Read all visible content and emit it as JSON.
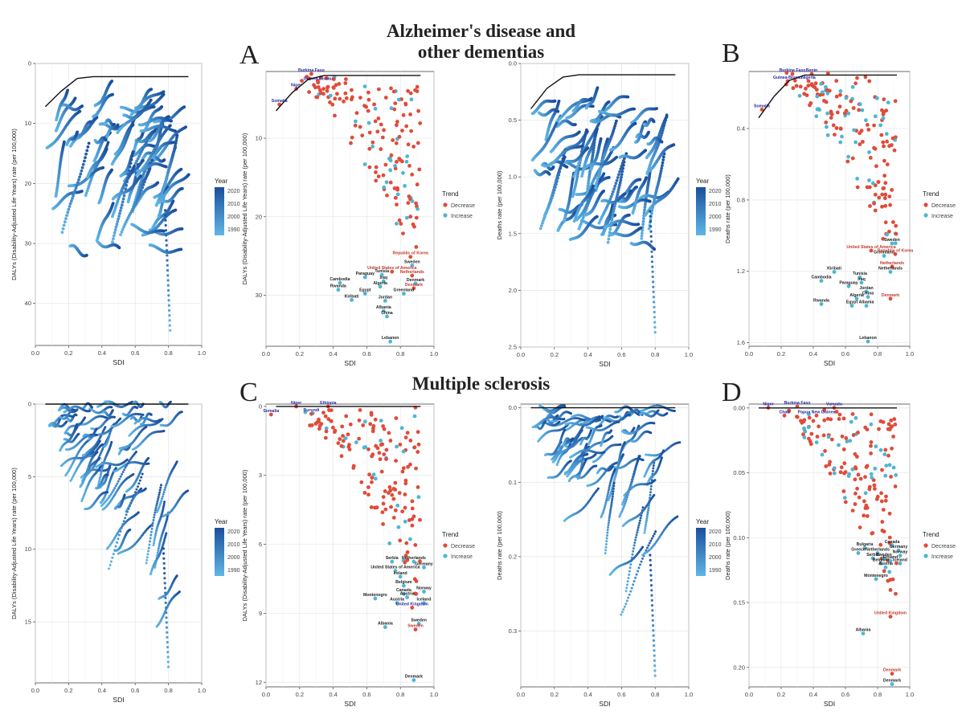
{
  "titles": {
    "top_line1": "Alzheimer's disease and",
    "top_line2": "other dementias",
    "bottom": "Multiple sclerosis"
  },
  "panel_letters": [
    "A",
    "B",
    "C",
    "D"
  ],
  "colors": {
    "decrease": "#e04b3a",
    "increase": "#4eb6d3",
    "year_dark": "#1b4f9c",
    "year_light": "#5fb6e6",
    "frontier": "#111111",
    "label_blue": "#2a2aa0",
    "label_red": "#c0392b",
    "label_black": "#222222"
  },
  "year_legend": {
    "title": "Year",
    "ticks": [
      "2020",
      "2010",
      "2000",
      "1990"
    ]
  },
  "trend_legend": {
    "title": "Trend",
    "items": [
      "Decrease",
      "Increase"
    ]
  },
  "chart_data": [
    {
      "id": "ad-dalys-lines",
      "type": "line",
      "xlabel": "SDI",
      "ylabel": "DALYs (Disability-Adjusted Life Years) rate (per 100,000)",
      "xlim": [
        0.0,
        1.0
      ],
      "xticks": [
        "0.0",
        "0.2",
        "0.4",
        "0.6",
        "0.8",
        "1.0"
      ],
      "ylim": [
        0,
        47
      ],
      "yticks": [
        0,
        10,
        20,
        30,
        40
      ],
      "y_reversed": true,
      "grid": true,
      "frontier_y": [
        7.2,
        4.6,
        2.5,
        2.2,
        2.2,
        2.2,
        2.2,
        2.2,
        2.2,
        2.2
      ],
      "series_summary": {
        "countries": 204,
        "years": [
          1990,
          2019
        ],
        "y_min": 2.5,
        "y_max": 44.5,
        "extreme_point": {
          "x": 0.81,
          "y": 44.5
        }
      }
    },
    {
      "id": "ad-dalys-scatter",
      "type": "scatter",
      "xlabel": "SDI",
      "ylabel": "DALYs (Disability-Adjusted Life Years) rate (per 100,000)",
      "xlim": [
        0.0,
        1.0
      ],
      "xticks": [
        "0.0",
        "0.2",
        "0.4",
        "0.6",
        "0.8",
        "1.0"
      ],
      "ylim": [
        1.5,
        36.5
      ],
      "yticks": [
        10,
        20,
        30
      ],
      "y_reversed": true,
      "grid": true,
      "frontier_y": [
        6.5,
        4.2,
        2.5,
        2.0,
        2.0,
        2.0,
        2.0,
        2.0,
        2.0,
        2.0
      ],
      "labels": [
        {
          "text": "Burkina Faso",
          "x": 0.27,
          "y": 1.5,
          "c": "blue"
        },
        {
          "text": "Niger",
          "x": 0.18,
          "y": 3.4,
          "c": "blue"
        },
        {
          "text": "Guinea-Bissau",
          "x": 0.31,
          "y": 2.6,
          "c": "blue"
        },
        {
          "text": "Somalia",
          "x": 0.08,
          "y": 5.4,
          "c": "blue"
        },
        {
          "text": "Republic of Korea",
          "x": 0.86,
          "y": 24.8,
          "c": "red"
        },
        {
          "text": "Sweden",
          "x": 0.87,
          "y": 25.9,
          "c": "black"
        },
        {
          "text": "United States of America",
          "x": 0.75,
          "y": 26.7,
          "c": "red"
        },
        {
          "text": "Netherlands",
          "x": 0.87,
          "y": 27.2,
          "c": "red"
        },
        {
          "text": "Paraguay",
          "x": 0.59,
          "y": 27.4,
          "c": "black"
        },
        {
          "text": "Tunisia",
          "x": 0.69,
          "y": 27.1,
          "c": "black"
        },
        {
          "text": "Cambodia",
          "x": 0.44,
          "y": 28.1,
          "c": "black"
        },
        {
          "text": "Iraq",
          "x": 0.7,
          "y": 27.9,
          "c": "black"
        },
        {
          "text": "Denmark",
          "x": 0.89,
          "y": 28.2,
          "c": "black"
        },
        {
          "text": "Rwanda",
          "x": 0.43,
          "y": 29.0,
          "c": "black"
        },
        {
          "text": "Algeria",
          "x": 0.68,
          "y": 28.6,
          "c": "black"
        },
        {
          "text": "Denmark",
          "x": 0.88,
          "y": 28.8,
          "c": "red"
        },
        {
          "text": "Egypt",
          "x": 0.59,
          "y": 29.5,
          "c": "black"
        },
        {
          "text": "Greenland",
          "x": 0.82,
          "y": 29.5,
          "c": "black"
        },
        {
          "text": "Kiribati",
          "x": 0.51,
          "y": 30.3,
          "c": "black"
        },
        {
          "text": "Jordan",
          "x": 0.71,
          "y": 30.4,
          "c": "black"
        },
        {
          "text": "Albania",
          "x": 0.7,
          "y": 31.7,
          "c": "black"
        },
        {
          "text": "China",
          "x": 0.72,
          "y": 32.4,
          "c": "black"
        },
        {
          "text": "Lebanon",
          "x": 0.74,
          "y": 35.6,
          "c": "black"
        }
      ],
      "points_summary": {
        "decrease_count": "majority",
        "increase_count": "minority",
        "y_min": 2.0,
        "y_max": 36.0
      }
    },
    {
      "id": "ad-deaths-lines",
      "type": "line",
      "xlabel": "SDI",
      "ylabel": "Deaths rate (per 100,000)",
      "xlim": [
        0.0,
        1.0
      ],
      "xticks": [
        "0.0",
        "0.2",
        "0.4",
        "0.6",
        "0.8",
        "1.0"
      ],
      "ylim": [
        0.0,
        2.5
      ],
      "yticks": [
        "0.0",
        "0.5",
        "1.0",
        "1.5",
        "2.0",
        "2.5"
      ],
      "y_reversed": true,
      "grid": true,
      "frontier_y": [
        0.4,
        0.22,
        0.12,
        0.1,
        0.1,
        0.1,
        0.1,
        0.1,
        0.1,
        0.1
      ],
      "series_summary": {
        "countries": 204,
        "years": [
          1990,
          2019
        ],
        "y_min": 0.1,
        "y_max": 2.38,
        "extreme_point": {
          "x": 0.8,
          "y": 2.37
        }
      }
    },
    {
      "id": "ad-deaths-scatter",
      "type": "scatter",
      "xlabel": "SDI",
      "ylabel": "Deaths rate (per 100,000)",
      "xlim": [
        0.0,
        1.0
      ],
      "xticks": [
        "0.0",
        "0.2",
        "0.4",
        "0.6",
        "0.8",
        "1.0"
      ],
      "ylim": [
        0.08,
        1.62
      ],
      "yticks": [
        "0.4",
        "0.8",
        "1.2",
        "1.6"
      ],
      "y_reversed": true,
      "grid": true,
      "frontier_y": [
        0.34,
        0.22,
        0.13,
        0.1,
        0.1,
        0.1,
        0.1,
        0.1,
        0.1,
        0.1
      ],
      "labels": [
        {
          "text": "Burkina Faso",
          "x": 0.27,
          "y": 0.08,
          "c": "blue"
        },
        {
          "text": "Benin",
          "x": 0.39,
          "y": 0.08,
          "c": "blue"
        },
        {
          "text": "Nigeria",
          "x": 0.37,
          "y": 0.12,
          "c": "blue"
        },
        {
          "text": "Guinea-Bissau",
          "x": 0.24,
          "y": 0.12,
          "c": "blue"
        },
        {
          "text": "Somalia",
          "x": 0.08,
          "y": 0.28,
          "c": "blue"
        },
        {
          "text": "Sweden",
          "x": 0.89,
          "y": 1.03,
          "c": "black"
        },
        {
          "text": "United States of America",
          "x": 0.76,
          "y": 1.07,
          "c": "red"
        },
        {
          "text": "Greenland",
          "x": 0.84,
          "y": 1.1,
          "c": "black"
        },
        {
          "text": "Republic of Korea",
          "x": 0.91,
          "y": 1.09,
          "c": "red"
        },
        {
          "text": "Netherlands",
          "x": 0.89,
          "y": 1.16,
          "c": "red"
        },
        {
          "text": "Netherlands",
          "x": 0.88,
          "y": 1.19,
          "c": "black"
        },
        {
          "text": "Kiribati",
          "x": 0.53,
          "y": 1.19,
          "c": "black"
        },
        {
          "text": "Tunisia",
          "x": 0.69,
          "y": 1.22,
          "c": "black"
        },
        {
          "text": "Cambodia",
          "x": 0.45,
          "y": 1.24,
          "c": "black"
        },
        {
          "text": "Iraq",
          "x": 0.7,
          "y": 1.25,
          "c": "black"
        },
        {
          "text": "Paraguay",
          "x": 0.62,
          "y": 1.27,
          "c": "black"
        },
        {
          "text": "Jordan",
          "x": 0.73,
          "y": 1.3,
          "c": "black"
        },
        {
          "text": "China",
          "x": 0.74,
          "y": 1.33,
          "c": "black"
        },
        {
          "text": "Algeria",
          "x": 0.67,
          "y": 1.34,
          "c": "black"
        },
        {
          "text": "Denmark",
          "x": 0.88,
          "y": 1.34,
          "c": "red"
        },
        {
          "text": "Egypt",
          "x": 0.64,
          "y": 1.38,
          "c": "black"
        },
        {
          "text": "Albania",
          "x": 0.73,
          "y": 1.38,
          "c": "black"
        },
        {
          "text": "Rwanda",
          "x": 0.45,
          "y": 1.37,
          "c": "black"
        },
        {
          "text": "Lebanon",
          "x": 0.74,
          "y": 1.58,
          "c": "black"
        }
      ],
      "points_summary": {
        "decrease_count": "majority",
        "increase_count": "minority",
        "y_min": 0.08,
        "y_max": 1.58
      }
    },
    {
      "id": "ms-dalys-lines",
      "type": "line",
      "xlabel": "SDI",
      "ylabel": "DALYs (Disability-Adjusted Life Years) rate (per 100,000)",
      "xlim": [
        0.0,
        1.0
      ],
      "xticks": [
        "0.0",
        "0.2",
        "0.4",
        "0.6",
        "0.8",
        "1.0"
      ],
      "ylim": [
        0,
        19.2
      ],
      "yticks": [
        0,
        5,
        10,
        15
      ],
      "y_reversed": true,
      "grid": true,
      "frontier_y": [
        0,
        0,
        0,
        0,
        0,
        0,
        0,
        0,
        0,
        0
      ],
      "series_summary": {
        "countries": 204,
        "years": [
          1990,
          2019
        ],
        "y_min": 0,
        "y_max": 18.2,
        "extreme_point": {
          "x": 0.8,
          "y": 18.1
        }
      }
    },
    {
      "id": "ms-dalys-scatter",
      "type": "scatter",
      "xlabel": "SDI",
      "ylabel": "DALYs (Disability-Adjusted Life Years) rate (per 100,000)",
      "xlim": [
        0.0,
        1.0
      ],
      "xticks": [
        "0.0",
        "0.2",
        "0.4",
        "0.6",
        "0.8",
        "1.0"
      ],
      "ylim": [
        -0.1,
        12.2
      ],
      "yticks": [
        0,
        3,
        6,
        9,
        12
      ],
      "y_reversed": true,
      "grid": true,
      "frontier_y": [
        0,
        0,
        0,
        0,
        0,
        0,
        0,
        0,
        0,
        0
      ],
      "labels": [
        {
          "text": "Niger",
          "x": 0.18,
          "y": -0.1,
          "c": "blue"
        },
        {
          "text": "Ethiopia",
          "x": 0.37,
          "y": -0.1,
          "c": "blue"
        },
        {
          "text": "Somalia",
          "x": 0.03,
          "y": 0.25,
          "c": "blue"
        },
        {
          "text": "Burundi",
          "x": 0.27,
          "y": 0.22,
          "c": "blue"
        },
        {
          "text": "Netherlands",
          "x": 0.88,
          "y": 6.65,
          "c": "black"
        },
        {
          "text": "Serbia",
          "x": 0.75,
          "y": 6.65,
          "c": "black"
        },
        {
          "text": "Germany",
          "x": 0.94,
          "y": 6.9,
          "c": "black"
        },
        {
          "text": "United States of America",
          "x": 0.77,
          "y": 7.05,
          "c": "black"
        },
        {
          "text": "Ireland",
          "x": 0.8,
          "y": 7.3,
          "c": "black"
        },
        {
          "text": "Belgium",
          "x": 0.82,
          "y": 7.7,
          "c": "black"
        },
        {
          "text": "Norway",
          "x": 0.94,
          "y": 7.95,
          "c": "black"
        },
        {
          "text": "Canada",
          "x": 0.82,
          "y": 8.05,
          "c": "black"
        },
        {
          "text": "Austria",
          "x": 0.84,
          "y": 8.2,
          "c": "black"
        },
        {
          "text": "Montenegro",
          "x": 0.65,
          "y": 8.25,
          "c": "black"
        },
        {
          "text": "Iceland",
          "x": 0.94,
          "y": 8.45,
          "c": "black"
        },
        {
          "text": "Austria",
          "x": 0.78,
          "y": 8.45,
          "c": "black"
        },
        {
          "text": "United Kingdom",
          "x": 0.87,
          "y": 8.65,
          "c": "blue"
        },
        {
          "text": "Sweden",
          "x": 0.91,
          "y": 9.35,
          "c": "black"
        },
        {
          "text": "Sweden",
          "x": 0.89,
          "y": 9.6,
          "c": "red"
        },
        {
          "text": "Albania",
          "x": 0.71,
          "y": 9.5,
          "c": "black"
        },
        {
          "text": "Denmark",
          "x": 0.88,
          "y": 11.8,
          "c": "black"
        }
      ],
      "points_summary": {
        "decrease_count": "majority",
        "increase_count": "minority",
        "y_min": 0,
        "y_max": 11.6
      }
    },
    {
      "id": "ms-deaths-lines",
      "type": "line",
      "xlabel": "SDI",
      "ylabel": "Deaths rate (per 100,000)",
      "xlim": [
        0.0,
        1.0
      ],
      "xticks": [
        "0.0",
        "0.2",
        "0.4",
        "0.6",
        "0.8",
        "1.0"
      ],
      "ylim": [
        -0.005,
        0.375
      ],
      "yticks": [
        "0.0",
        "0.1",
        "0.2",
        "0.3"
      ],
      "y_reversed": true,
      "grid": true,
      "frontier_y": [
        0,
        0,
        0,
        0,
        0,
        0,
        0,
        0,
        0,
        0
      ],
      "series_summary": {
        "countries": 204,
        "years": [
          1990,
          2019
        ],
        "y_min": 0,
        "y_max": 0.36,
        "extreme_point": {
          "x": 0.8,
          "y": 0.36
        }
      }
    },
    {
      "id": "ms-deaths-scatter",
      "type": "scatter",
      "xlabel": "SDI",
      "ylabel": "Deaths rate (per 100,000)",
      "xlim": [
        0.0,
        1.0
      ],
      "xticks": [
        "0.0",
        "0.2",
        "0.4",
        "0.6",
        "0.8",
        "1.0"
      ],
      "ylim": [
        -0.003,
        0.215
      ],
      "yticks": [
        "0.00",
        "0.05",
        "0.10",
        "0.15",
        "0.20"
      ],
      "y_reversed": true,
      "grid": true,
      "frontier_y": [
        0,
        0,
        0,
        0,
        0,
        0,
        0,
        0,
        0,
        0
      ],
      "labels": [
        {
          "text": "Niger",
          "x": 0.12,
          "y": -0.002,
          "c": "blue"
        },
        {
          "text": "Burkina Faso",
          "x": 0.3,
          "y": -0.003,
          "c": "blue"
        },
        {
          "text": "Vanuatu",
          "x": 0.53,
          "y": -0.002,
          "c": "blue"
        },
        {
          "text": "Chad",
          "x": 0.22,
          "y": 0.004,
          "c": "blue"
        },
        {
          "text": "Papua New Guinea",
          "x": 0.42,
          "y": 0.004,
          "c": "blue"
        },
        {
          "text": "Bulgaria",
          "x": 0.72,
          "y": 0.106,
          "c": "black"
        },
        {
          "text": "Canada",
          "x": 0.89,
          "y": 0.104,
          "c": "black"
        },
        {
          "text": "Germany",
          "x": 0.93,
          "y": 0.108,
          "c": "black"
        },
        {
          "text": "Netherlands",
          "x": 0.8,
          "y": 0.11,
          "c": "black"
        },
        {
          "text": "Greece",
          "x": 0.68,
          "y": 0.11,
          "c": "black"
        },
        {
          "text": "Norway",
          "x": 0.94,
          "y": 0.112,
          "c": "black"
        },
        {
          "text": "Serbia",
          "x": 0.77,
          "y": 0.114,
          "c": "black"
        },
        {
          "text": "Sweden",
          "x": 0.84,
          "y": 0.114,
          "c": "black"
        },
        {
          "text": "Finland",
          "x": 0.88,
          "y": 0.116,
          "c": "black"
        },
        {
          "text": "Belgium",
          "x": 0.82,
          "y": 0.118,
          "c": "black"
        },
        {
          "text": "Iceland",
          "x": 0.94,
          "y": 0.118,
          "c": "black"
        },
        {
          "text": "Austria",
          "x": 0.85,
          "y": 0.121,
          "c": "black"
        },
        {
          "text": "Montenegro",
          "x": 0.79,
          "y": 0.13,
          "c": "black"
        },
        {
          "text": "United Kingdom",
          "x": 0.88,
          "y": 0.159,
          "c": "red"
        },
        {
          "text": "Albania",
          "x": 0.71,
          "y": 0.172,
          "c": "black"
        },
        {
          "text": "Denmark",
          "x": 0.89,
          "y": 0.203,
          "c": "red"
        },
        {
          "text": "Denmark",
          "x": 0.89,
          "y": 0.211,
          "c": "black"
        }
      ],
      "points_summary": {
        "decrease_count": "majority",
        "increase_count": "minority",
        "y_min": 0,
        "y_max": 0.207
      }
    }
  ]
}
